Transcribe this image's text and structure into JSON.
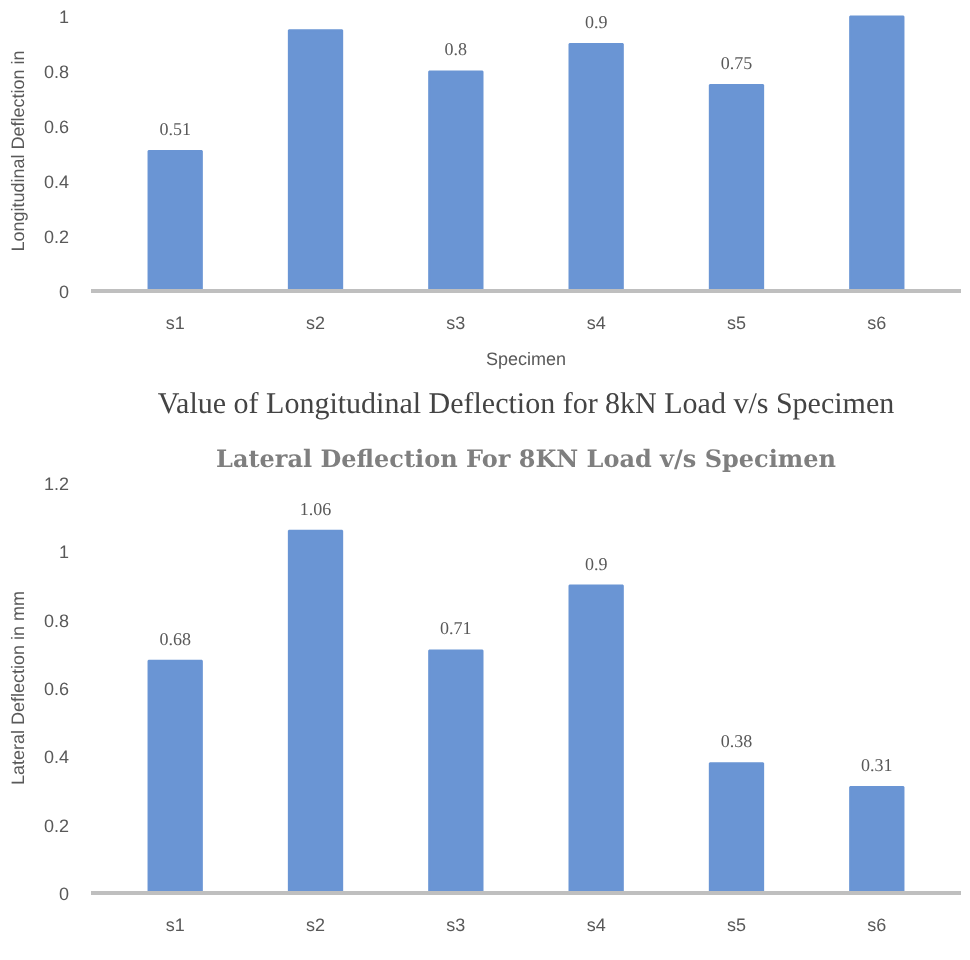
{
  "chart_data": [
    {
      "type": "bar",
      "ylabel": "Longitudinal Deflection in",
      "xlabel": "Specimen",
      "annotations": [
        "Value of Longitudinal Deflection for 8kN Load v/s Specimen"
      ],
      "categories": [
        "s1",
        "s2",
        "s3",
        "s4",
        "s5",
        "s6"
      ],
      "values": [
        0.51,
        0.95,
        0.8,
        0.9,
        0.75,
        1.0
      ],
      "value_labels": [
        "0.51",
        null,
        "0.8",
        "0.9",
        "0.75",
        null
      ],
      "color": "#6a95d4",
      "ylim": [
        0,
        1.02
      ],
      "yticks": [
        0,
        0.2,
        0.4,
        0.6,
        0.8,
        {
          "value": 1,
          "label": "1"
        }
      ],
      "grid": false
    },
    {
      "type": "bar",
      "title": "Lateral Deflection For 8KN Load v/s Specimen",
      "ylabel": "Lateral Deflection in mm",
      "categories": [
        "s1",
        "s2",
        "s3",
        "s4",
        "s5",
        "s6"
      ],
      "values": [
        0.68,
        1.06,
        0.71,
        0.9,
        0.38,
        0.31
      ],
      "data_labels": true,
      "color": "#6a95d4",
      "ylim": [
        0,
        1.2
      ],
      "yticks": [
        0,
        0.2,
        0.4,
        0.6,
        0.8,
        {
          "value": 1,
          "label": "1"
        },
        1.2
      ],
      "grid": false
    }
  ]
}
